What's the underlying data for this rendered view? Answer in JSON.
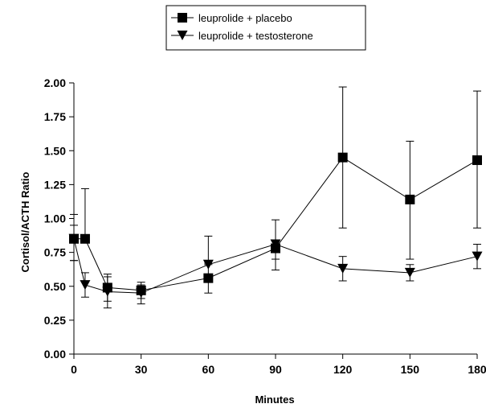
{
  "chart_data": {
    "type": "line",
    "xlabel": "Minutes",
    "ylabel": "Cortisol/ACTH Ratio",
    "xlim": [
      0,
      180
    ],
    "ylim": [
      0,
      2.0
    ],
    "xticks": [
      0,
      30,
      60,
      90,
      120,
      150,
      180
    ],
    "yticks": [
      0.0,
      0.25,
      0.5,
      0.75,
      1.0,
      1.25,
      1.5,
      1.75,
      2.0
    ],
    "ytick_labels": [
      "0.00",
      "0.25",
      "0.50",
      "0.75",
      "1.00",
      "1.25",
      "1.50",
      "1.75",
      "2.00"
    ],
    "grid": false,
    "legend_position": "top-center",
    "series": [
      {
        "name": "leuprolide + placebo",
        "marker": "square",
        "color": "#000000",
        "x": [
          0,
          5,
          15,
          30,
          60,
          90,
          120,
          150,
          180
        ],
        "y": [
          0.85,
          0.85,
          0.49,
          0.47,
          0.56,
          0.78,
          1.45,
          1.14,
          1.43
        ],
        "err_low": [
          0.69,
          0.85,
          0.39,
          0.41,
          0.45,
          0.62,
          0.93,
          0.7,
          0.93
        ],
        "err_high": [
          1.03,
          1.22,
          0.59,
          0.53,
          0.67,
          0.81,
          1.97,
          1.57,
          1.94
        ]
      },
      {
        "name": "leuprolide + testosterone",
        "marker": "triangle-down",
        "color": "#000000",
        "x": [
          0,
          5,
          15,
          30,
          60,
          90,
          120,
          150,
          180
        ],
        "y": [
          0.85,
          0.51,
          0.46,
          0.45,
          0.66,
          0.81,
          0.63,
          0.6,
          0.72
        ],
        "err_low": [
          0.69,
          0.42,
          0.34,
          0.37,
          0.66,
          0.7,
          0.54,
          0.54,
          0.63
        ],
        "err_high": [
          0.95,
          0.6,
          0.57,
          0.51,
          0.87,
          0.99,
          0.72,
          0.66,
          0.81
        ]
      }
    ]
  }
}
